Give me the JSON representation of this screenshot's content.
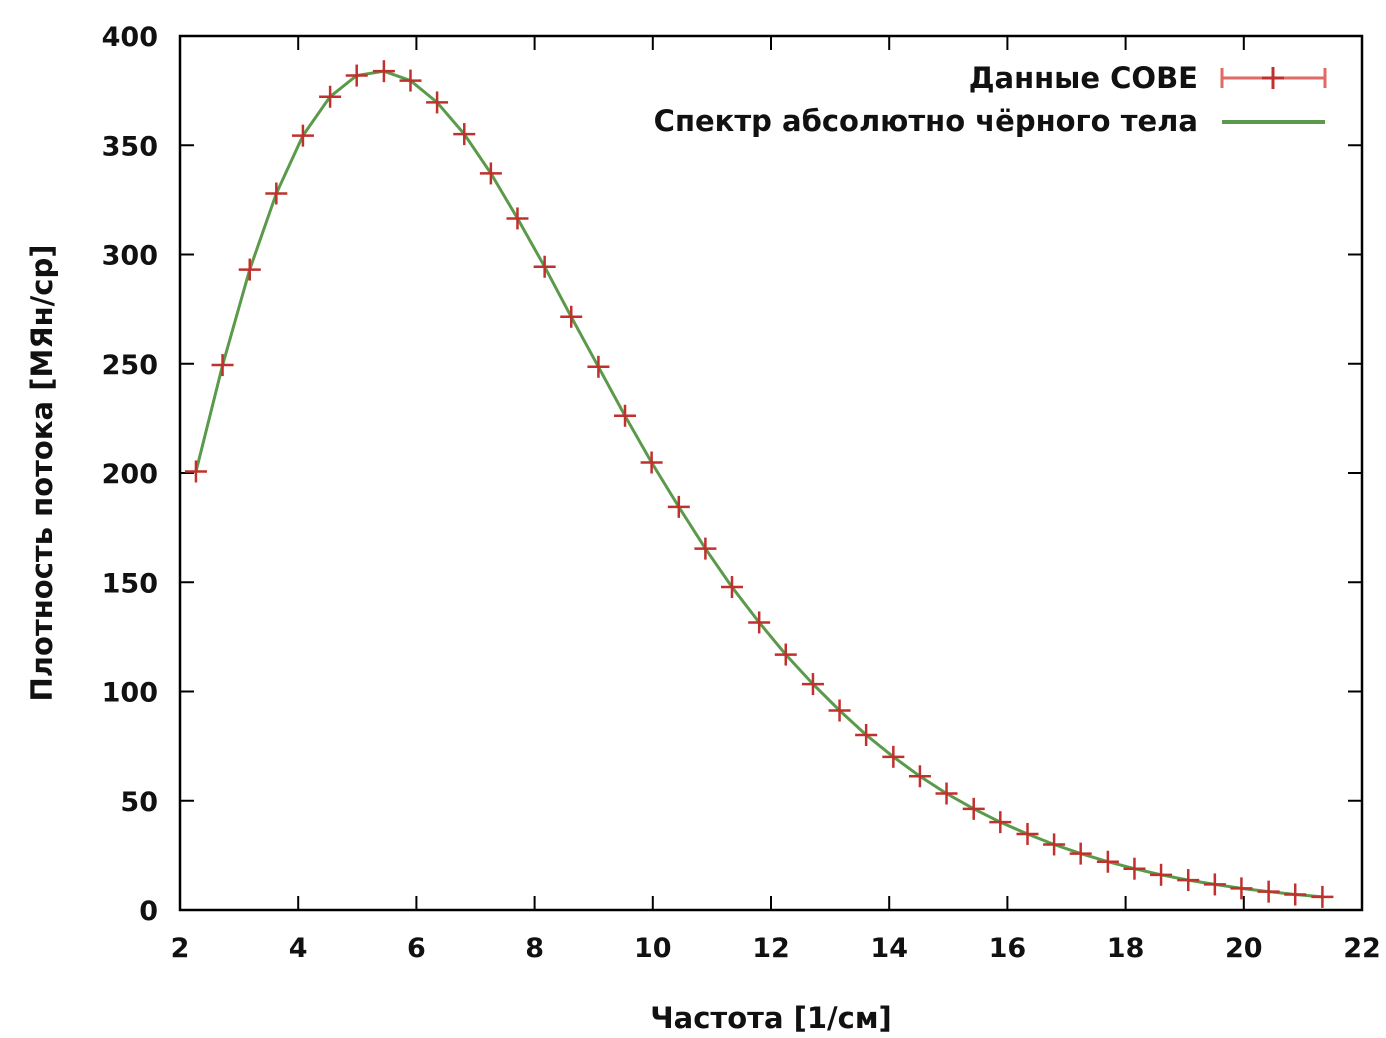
{
  "chart_data": {
    "type": "line",
    "xlabel": "Частота [1/см]",
    "ylabel": "Плотность потока [МЯн/ср]",
    "xlim": [
      2,
      22
    ],
    "ylim": [
      0,
      400
    ],
    "x_ticks": [
      2,
      4,
      6,
      8,
      10,
      12,
      14,
      16,
      18,
      20,
      22
    ],
    "y_ticks": [
      0,
      50,
      100,
      150,
      200,
      250,
      300,
      350,
      400
    ],
    "grid": false,
    "legend_position": "top-right",
    "series": [
      {
        "name": "Данные COBE",
        "style": "points-with-errorbars",
        "color": "#d9433f",
        "x": [
          2.27,
          2.72,
          3.18,
          3.63,
          4.08,
          4.54,
          4.99,
          5.45,
          5.9,
          6.35,
          6.81,
          7.26,
          7.71,
          8.17,
          8.62,
          9.08,
          9.53,
          9.98,
          10.44,
          10.89,
          11.34,
          11.8,
          12.25,
          12.71,
          13.16,
          13.61,
          14.07,
          14.52,
          14.97,
          15.43,
          15.88,
          16.34,
          16.79,
          17.24,
          17.7,
          18.15,
          18.6,
          19.06,
          19.51,
          19.96,
          20.42,
          20.87,
          21.33
        ],
        "y": [
          200.7,
          249.4,
          293.1,
          327.9,
          354.4,
          372.2,
          381.9,
          383.9,
          379.6,
          369.6,
          355.1,
          337.1,
          316.5,
          294.4,
          271.5,
          248.6,
          226.2,
          204.8,
          184.5,
          165.4,
          147.8,
          131.6,
          116.9,
          103.4,
          91.3,
          80.1,
          70.1,
          61.2,
          53.3,
          46.3,
          40.2,
          34.8,
          30.0,
          25.8,
          22.1,
          18.9,
          16.1,
          13.7,
          11.7,
          9.9,
          8.4,
          7.1,
          6.0
        ]
      },
      {
        "name": "Спектр абсолютно чёрного тела",
        "style": "line",
        "color": "#5a9a4a",
        "x": [
          2.27,
          2.72,
          3.18,
          3.63,
          4.08,
          4.54,
          4.99,
          5.45,
          5.9,
          6.35,
          6.81,
          7.26,
          7.71,
          8.17,
          8.62,
          9.08,
          9.53,
          9.98,
          10.44,
          10.89,
          11.34,
          11.8,
          12.25,
          12.71,
          13.16,
          13.61,
          14.07,
          14.52,
          14.97,
          15.43,
          15.88,
          16.34,
          16.79,
          17.24,
          17.7,
          18.15,
          18.6,
          19.06,
          19.51,
          19.96,
          20.42,
          20.87,
          21.33
        ],
        "y": [
          200.7,
          249.4,
          293.1,
          327.9,
          354.4,
          372.2,
          381.9,
          383.9,
          379.6,
          369.6,
          355.1,
          337.1,
          316.5,
          294.4,
          271.5,
          248.6,
          226.2,
          204.8,
          184.5,
          165.4,
          147.8,
          131.6,
          116.9,
          103.4,
          91.3,
          80.1,
          70.1,
          61.2,
          53.3,
          46.3,
          40.2,
          34.8,
          30.0,
          25.8,
          22.1,
          18.9,
          16.1,
          13.7,
          11.7,
          9.9,
          8.4,
          7.1,
          6.0
        ]
      }
    ]
  }
}
